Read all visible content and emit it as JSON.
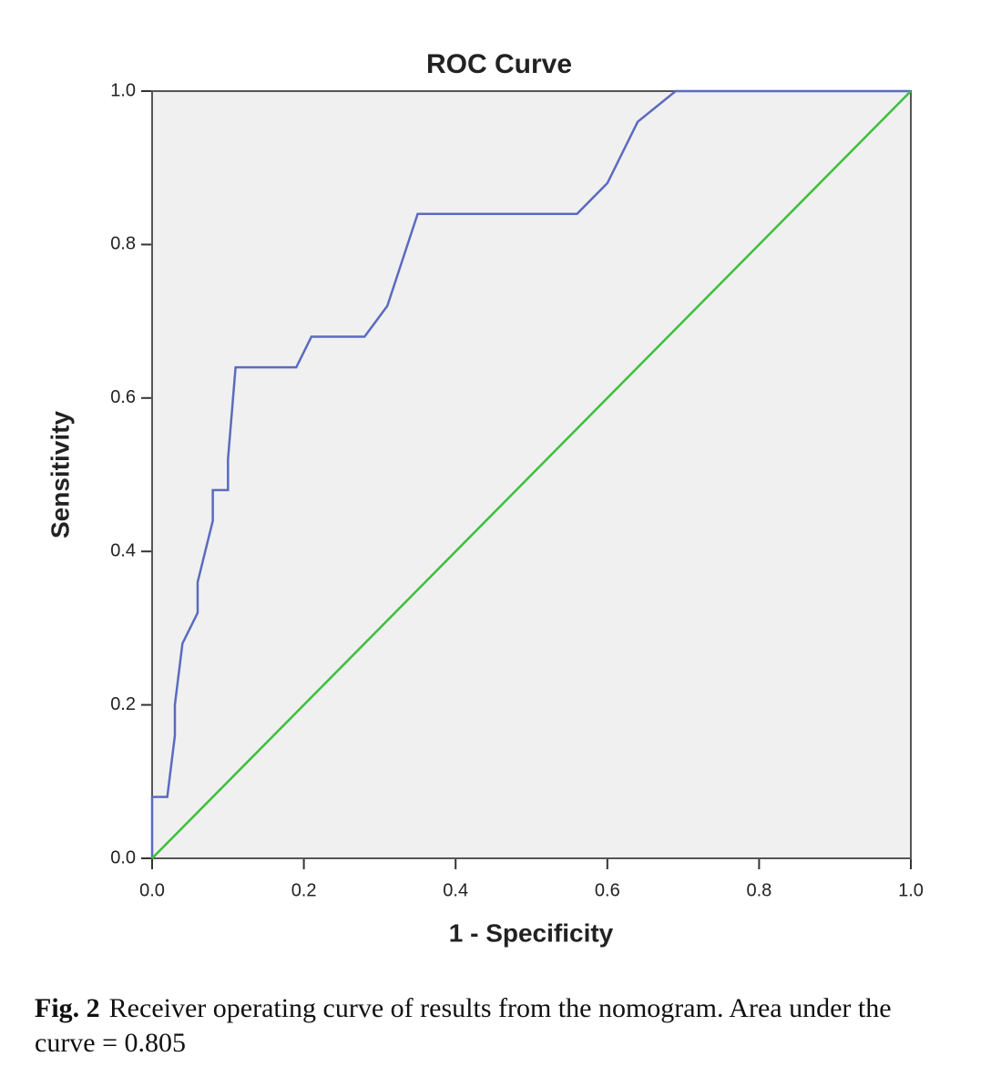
{
  "chart_data": {
    "type": "line",
    "title": "ROC Curve",
    "x_label": "1 - Specificity",
    "y_label": "Sensitivity",
    "series": [
      {
        "color": "#5b6bbf",
        "x": [
          0,
          0,
          0.02,
          0.03,
          0.03,
          0.04,
          0.06,
          0.06,
          0.08,
          0.08,
          0.1,
          0.1,
          0.11,
          0.19,
          0.21,
          0.28,
          0.31,
          0.35,
          0.56,
          0.6,
          0.64,
          0.69,
          1
        ],
        "values": [
          0,
          0.08,
          0.08,
          0.16,
          0.2,
          0.28,
          0.32,
          0.36,
          0.44,
          0.48,
          0.48,
          0.52,
          0.64,
          0.64,
          0.68,
          0.68,
          0.72,
          0.84,
          0.84,
          0.88,
          0.96,
          1,
          1
        ]
      },
      {
        "color": "#3cc03c",
        "x": [
          0,
          1
        ],
        "values": [
          0,
          1
        ]
      }
    ],
    "xlim": [
      0,
      1
    ],
    "ylim": [
      0,
      1
    ],
    "xticks": [
      {
        "value": 0,
        "label": "0.0"
      },
      0.2,
      0.4,
      0.6,
      0.8,
      {
        "value": 1,
        "label": "1.0"
      }
    ],
    "yticks": [
      {
        "value": 0,
        "label": "0.0"
      },
      0.2,
      0.4,
      0.6,
      0.8,
      {
        "value": 1,
        "label": "1.0"
      }
    ],
    "background": "#f0f0f0"
  },
  "caption": {
    "label": "Fig. 2",
    "text": "Receiver operating curve of results from the nomogram. Area under the curve = 0.805"
  }
}
